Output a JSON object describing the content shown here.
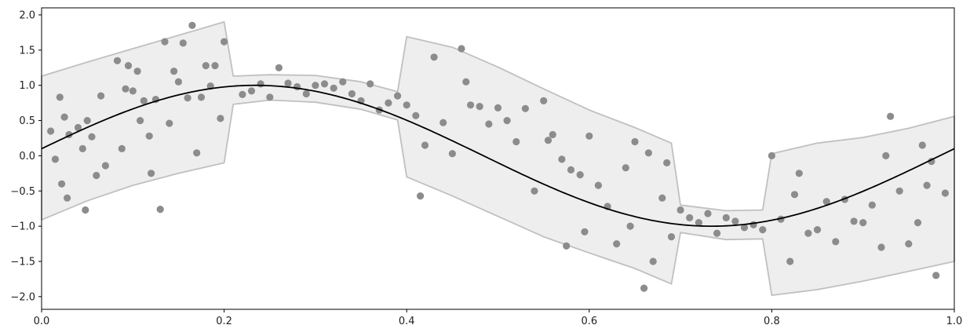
{
  "chart_data": {
    "type": "scatter",
    "title": "",
    "xlabel": "",
    "ylabel": "",
    "xlim": [
      0.0,
      1.0
    ],
    "ylim": [
      -2.18,
      2.1
    ],
    "grid": false,
    "legend": "none",
    "xticks": [
      0.0,
      0.2,
      0.4,
      0.6,
      0.8,
      1.0
    ],
    "xtick_labels": [
      "0.0",
      "0.2",
      "0.4",
      "0.6",
      "0.8",
      "1.0"
    ],
    "yticks": [
      -2.0,
      -1.5,
      -1.0,
      -0.5,
      0.0,
      0.5,
      1.0,
      1.5,
      2.0
    ],
    "ytick_labels": [
      "−2.0",
      "−1.5",
      "−1.0",
      "−0.5",
      "0.0",
      "0.5",
      "1.0",
      "1.5",
      "2.0"
    ],
    "colors": {
      "points": "#8c8c8c",
      "line": "#000000",
      "band_fill": "#eeeeee",
      "band_edge": "#c0c0c0",
      "axes": "#000000"
    },
    "mean_curve": {
      "function": "sin(2*pi*x + 0.1)",
      "x": [
        0.0,
        0.05,
        0.1,
        0.15,
        0.2,
        0.25,
        0.3,
        0.35,
        0.4,
        0.45,
        0.5,
        0.55,
        0.6,
        0.65,
        0.7,
        0.75,
        0.8,
        0.85,
        0.9,
        0.95,
        1.0
      ],
      "y": [
        0.1,
        0.39,
        0.65,
        0.85,
        0.97,
        1.0,
        0.93,
        0.76,
        0.51,
        0.22,
        -0.1,
        -0.39,
        -0.65,
        -0.85,
        -0.97,
        -1.0,
        -0.93,
        -0.76,
        -0.51,
        -0.22,
        0.1
      ]
    },
    "band": {
      "segments": [
        {
          "x_start": 0.0,
          "x_end": 0.2,
          "halfwidth": 1.02
        },
        {
          "x_start": 0.2,
          "x_end": 0.4,
          "halfwidth": 0.2
        },
        {
          "x_start": 0.4,
          "x_end": 0.7,
          "halfwidth": 1.0
        },
        {
          "x_start": 0.7,
          "x_end": 0.8,
          "halfwidth": 0.2
        },
        {
          "x_start": 0.8,
          "x_end": 1.0,
          "halfwidth": 1.02
        }
      ],
      "note_shape": "upper/lower edges as drawn",
      "upper": [
        [
          0.0,
          1.13
        ],
        [
          0.05,
          1.33
        ],
        [
          0.1,
          1.52
        ],
        [
          0.15,
          1.71
        ],
        [
          0.2,
          1.9
        ],
        [
          0.21,
          1.13
        ],
        [
          0.25,
          1.15
        ],
        [
          0.3,
          1.14
        ],
        [
          0.35,
          1.05
        ],
        [
          0.39,
          0.91
        ],
        [
          0.4,
          1.69
        ],
        [
          0.45,
          1.54
        ],
        [
          0.5,
          1.26
        ],
        [
          0.55,
          0.95
        ],
        [
          0.6,
          0.65
        ],
        [
          0.65,
          0.4
        ],
        [
          0.69,
          0.18
        ],
        [
          0.7,
          -0.7
        ],
        [
          0.75,
          -0.78
        ],
        [
          0.79,
          -0.77
        ],
        [
          0.8,
          0.03
        ],
        [
          0.85,
          0.18
        ],
        [
          0.9,
          0.26
        ],
        [
          0.95,
          0.39
        ],
        [
          1.0,
          0.56
        ]
      ],
      "lower": [
        [
          0.0,
          -0.91
        ],
        [
          0.05,
          -0.64
        ],
        [
          0.1,
          -0.42
        ],
        [
          0.15,
          -0.25
        ],
        [
          0.2,
          -0.1
        ],
        [
          0.21,
          0.73
        ],
        [
          0.25,
          0.79
        ],
        [
          0.3,
          0.76
        ],
        [
          0.35,
          0.66
        ],
        [
          0.39,
          0.51
        ],
        [
          0.4,
          -0.3
        ],
        [
          0.45,
          -0.57
        ],
        [
          0.5,
          -0.86
        ],
        [
          0.55,
          -1.15
        ],
        [
          0.6,
          -1.38
        ],
        [
          0.65,
          -1.6
        ],
        [
          0.69,
          -1.82
        ],
        [
          0.7,
          -1.09
        ],
        [
          0.75,
          -1.19
        ],
        [
          0.79,
          -1.18
        ],
        [
          0.8,
          -1.98
        ],
        [
          0.85,
          -1.9
        ],
        [
          0.9,
          -1.78
        ],
        [
          0.95,
          -1.64
        ],
        [
          1.0,
          -1.5
        ]
      ]
    },
    "points": {
      "x": [
        0.01,
        0.015,
        0.02,
        0.022,
        0.025,
        0.028,
        0.03,
        0.04,
        0.045,
        0.048,
        0.05,
        0.055,
        0.06,
        0.065,
        0.07,
        0.083,
        0.088,
        0.092,
        0.095,
        0.1,
        0.105,
        0.108,
        0.112,
        0.118,
        0.12,
        0.125,
        0.13,
        0.135,
        0.14,
        0.145,
        0.15,
        0.155,
        0.16,
        0.165,
        0.17,
        0.175,
        0.18,
        0.185,
        0.19,
        0.196,
        0.2,
        0.22,
        0.23,
        0.24,
        0.25,
        0.26,
        0.27,
        0.28,
        0.29,
        0.3,
        0.31,
        0.32,
        0.33,
        0.34,
        0.35,
        0.36,
        0.37,
        0.38,
        0.39,
        0.4,
        0.41,
        0.415,
        0.42,
        0.43,
        0.44,
        0.45,
        0.46,
        0.465,
        0.47,
        0.48,
        0.49,
        0.5,
        0.51,
        0.52,
        0.53,
        0.54,
        0.55,
        0.555,
        0.56,
        0.57,
        0.575,
        0.58,
        0.59,
        0.595,
        0.6,
        0.61,
        0.62,
        0.63,
        0.64,
        0.645,
        0.65,
        0.66,
        0.665,
        0.67,
        0.68,
        0.685,
        0.69,
        0.7,
        0.71,
        0.72,
        0.73,
        0.74,
        0.75,
        0.76,
        0.77,
        0.78,
        0.79,
        0.8,
        0.81,
        0.82,
        0.825,
        0.83,
        0.84,
        0.85,
        0.86,
        0.87,
        0.88,
        0.89,
        0.9,
        0.91,
        0.92,
        0.925,
        0.93,
        0.94,
        0.95,
        0.96,
        0.965,
        0.97,
        0.975,
        0.98,
        0.99
      ],
      "y": [
        0.35,
        -0.05,
        0.83,
        -0.4,
        0.55,
        -0.6,
        0.3,
        0.4,
        0.1,
        -0.77,
        0.5,
        0.27,
        -0.28,
        0.85,
        -0.14,
        1.35,
        0.1,
        0.95,
        1.28,
        0.92,
        1.2,
        0.5,
        0.78,
        0.28,
        -0.25,
        0.8,
        -0.76,
        1.62,
        0.46,
        1.2,
        1.05,
        1.6,
        0.82,
        1.85,
        0.04,
        0.83,
        1.28,
        0.99,
        1.28,
        0.53,
        1.62,
        0.87,
        0.92,
        1.02,
        0.83,
        1.25,
        1.03,
        0.98,
        0.88,
        1.0,
        1.02,
        0.96,
        1.05,
        0.88,
        0.78,
        1.02,
        0.65,
        0.75,
        0.85,
        0.72,
        0.57,
        -0.57,
        0.15,
        1.4,
        0.47,
        0.03,
        1.52,
        1.05,
        0.72,
        0.7,
        0.45,
        0.68,
        0.5,
        0.2,
        0.67,
        -0.5,
        0.78,
        0.22,
        0.3,
        -0.05,
        -1.28,
        -0.2,
        -0.27,
        -1.08,
        0.28,
        -0.42,
        -0.72,
        -1.25,
        -0.17,
        -1.0,
        0.2,
        -1.88,
        0.04,
        -1.5,
        -0.6,
        -0.1,
        -1.15,
        -0.77,
        -0.88,
        -0.95,
        -0.82,
        -1.1,
        -0.88,
        -0.93,
        -1.02,
        -0.98,
        -1.05,
        0.0,
        -0.9,
        -1.5,
        -0.55,
        -0.25,
        -1.1,
        -1.05,
        -0.65,
        -1.22,
        -0.62,
        -0.93,
        -0.95,
        -0.7,
        -1.3,
        0.0,
        0.56,
        -0.5,
        -1.25,
        -0.95,
        0.15,
        -0.42,
        -0.08,
        -1.7,
        -0.53
      ]
    }
  }
}
